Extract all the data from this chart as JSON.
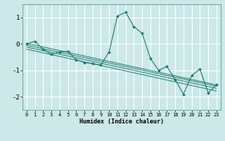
{
  "xlabel": "Humidex (Indice chaleur)",
  "ylabel": "",
  "background_color": "#cce8e8",
  "grid_color": "#ffffff",
  "line_color": "#1a7a6e",
  "x": [
    0,
    1,
    2,
    3,
    4,
    5,
    6,
    7,
    8,
    9,
    10,
    11,
    12,
    13,
    14,
    15,
    16,
    17,
    18,
    19,
    20,
    21,
    22,
    23
  ],
  "y_main": [
    0.0,
    0.1,
    -0.2,
    -0.4,
    -0.3,
    -0.28,
    -0.6,
    -0.7,
    -0.75,
    -0.8,
    -0.3,
    1.05,
    1.2,
    0.65,
    0.4,
    -0.55,
    -1.0,
    -0.85,
    -1.35,
    -1.9,
    -1.2,
    -0.95,
    -1.85,
    -1.55
  ],
  "ylim": [
    -2.5,
    1.5
  ],
  "xlim": [
    -0.5,
    23.5
  ],
  "yticks": [
    -2,
    -1,
    0,
    1
  ],
  "xticks": [
    0,
    1,
    2,
    3,
    4,
    5,
    6,
    7,
    8,
    9,
    10,
    11,
    12,
    13,
    14,
    15,
    16,
    17,
    18,
    19,
    20,
    21,
    22,
    23
  ],
  "xtick_labels": [
    "0",
    "1",
    "2",
    "3",
    "4",
    "5",
    "6",
    "7",
    "8",
    "9",
    "10",
    "11",
    "12",
    "13",
    "14",
    "15",
    "16",
    "17",
    "18",
    "19",
    "20",
    "21",
    "22",
    "23"
  ],
  "regression_lines": [
    {
      "x0": 0,
      "y0": 0.02,
      "x1": 23,
      "y1": -1.55
    },
    {
      "x0": 0,
      "y0": -0.05,
      "x1": 23,
      "y1": -1.6
    },
    {
      "x0": 0,
      "y0": -0.12,
      "x1": 23,
      "y1": -1.68
    },
    {
      "x0": 0,
      "y0": -0.2,
      "x1": 23,
      "y1": -1.78
    }
  ]
}
